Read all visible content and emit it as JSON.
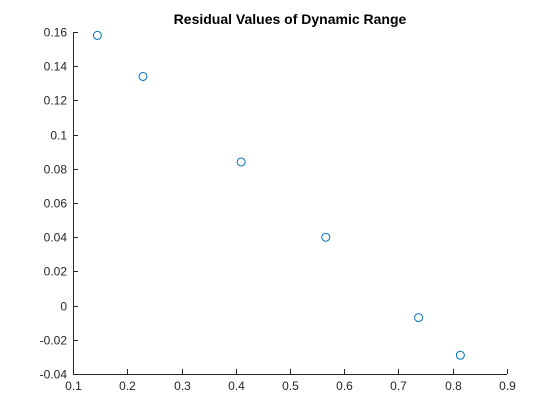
{
  "chart_data": {
    "type": "scatter",
    "title": "Residual Values of Dynamic Range",
    "xlabel": "",
    "ylabel": "",
    "xlim": [
      0.1,
      0.9
    ],
    "ylim": [
      -0.04,
      0.16
    ],
    "xticks": [
      0.1,
      0.2,
      0.3,
      0.4,
      0.5,
      0.6,
      0.7,
      0.8,
      0.9
    ],
    "yticks": [
      -0.04,
      -0.02,
      0,
      0.02,
      0.04,
      0.06,
      0.08,
      0.1,
      0.12,
      0.14,
      0.16
    ],
    "xtick_labels": [
      "0.1",
      "0.2",
      "0.3",
      "0.4",
      "0.5",
      "0.6",
      "0.7",
      "0.8",
      "0.9"
    ],
    "ytick_labels": [
      "-0.04",
      "-0.02",
      "0",
      "0.02",
      "0.04",
      "0.06",
      "0.08",
      "0.1",
      "0.12",
      "0.14",
      "0.16"
    ],
    "grid": false,
    "marker": "circle",
    "series": [
      {
        "color": "#0072BD",
        "x": [
          0.145,
          0.229,
          0.41,
          0.566,
          0.737,
          0.814
        ],
        "y": [
          0.158,
          0.134,
          0.084,
          0.04,
          -0.007,
          -0.029
        ]
      }
    ]
  }
}
